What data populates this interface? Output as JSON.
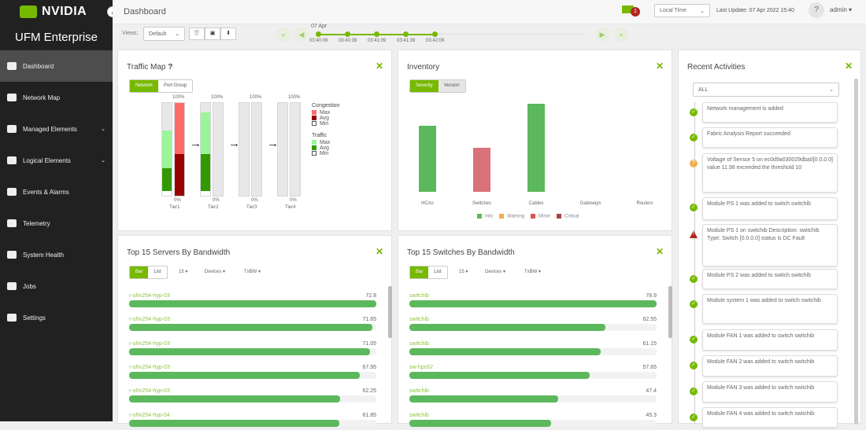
{
  "brand": {
    "logo": "NVIDIA",
    "product": "UFM Enterprise"
  },
  "sidebar": {
    "items": [
      {
        "label": "Dashboard",
        "icon": "dashboard-icon",
        "active": true
      },
      {
        "label": "Network Map",
        "icon": "sitemap-icon"
      },
      {
        "label": "Managed Elements",
        "icon": "list-icon",
        "expandable": true
      },
      {
        "label": "Logical Elements",
        "icon": "server-icon",
        "expandable": true
      },
      {
        "label": "Events & Alarms",
        "icon": "bell-icon"
      },
      {
        "label": "Telemetry",
        "icon": "chart-icon"
      },
      {
        "label": "System Health",
        "icon": "medkit-icon"
      },
      {
        "label": "Jobs",
        "icon": "cube-icon"
      },
      {
        "label": "Settings",
        "icon": "gear-icon"
      }
    ]
  },
  "header": {
    "title": "Dashboard",
    "notifications": "1",
    "time_mode": "Local Time",
    "last_update": "Last Update: 07 Apr 2022 15:40",
    "help": "?",
    "user": "admin"
  },
  "toolbar": {
    "views_label": "Views:",
    "view": "Default"
  },
  "timeline": {
    "date": "07 Apr",
    "times": [
      "03:40:09",
      "03:40:39",
      "03:41:09",
      "03:41:39",
      "03:42:09"
    ]
  },
  "traffic_map": {
    "title": "Traffic Map",
    "tabs": [
      "Network",
      "Port Group"
    ],
    "top": "100%",
    "bottom": "0%",
    "tiers": [
      {
        "name": "Tier1",
        "traffic_max": 0.7,
        "traffic_avg": 0.25,
        "cong_max": 1.0,
        "cong_avg": 0.45
      },
      {
        "name": "Tier2",
        "traffic_max": 0.9,
        "traffic_avg": 0.4,
        "cong_max": 0,
        "cong_avg": 0
      },
      {
        "name": "Tier3",
        "traffic_max": 0,
        "traffic_avg": 0,
        "cong_max": 0,
        "cong_avg": 0
      },
      {
        "name": "Tier4",
        "traffic_max": 0,
        "traffic_avg": 0,
        "cong_max": 0,
        "cong_avg": 0
      }
    ],
    "legend": {
      "congestion": "Congestion",
      "traffic": "Traffic",
      "max": "Max",
      "avg": "Avg",
      "min": "Min"
    },
    "colors": {
      "cong_max": "#ff6b6b",
      "cong_avg": "#990000",
      "traffic_max": "#9af59a",
      "traffic_avg": "#339900"
    }
  },
  "chart_data": {
    "type": "bar",
    "categories": [
      "HCAs",
      "Switches",
      "Cables",
      "Gateways",
      "Routers"
    ],
    "values": [
      3,
      2,
      4,
      0,
      0
    ],
    "severity": [
      "Info",
      "Minor",
      "Info",
      null,
      null
    ],
    "legend": [
      {
        "name": "Info",
        "color": "#5cb85c"
      },
      {
        "name": "Warning",
        "color": "#f0ad4e"
      },
      {
        "name": "Minor",
        "color": "#d9534f"
      },
      {
        "name": "Critical",
        "color": "#a94442"
      }
    ]
  },
  "inventory": {
    "title": "Inventory",
    "tabs": [
      "Severity",
      "Version"
    ]
  },
  "servers": {
    "title": "Top 15 Servers By Bandwidth",
    "tabs": [
      "Bar",
      "List"
    ],
    "filters": [
      "15",
      "Devices",
      "TxBW"
    ],
    "max": 72.8,
    "rows": [
      {
        "name": "r-ufm254-hyp-03",
        "value": 72.8
      },
      {
        "name": "r-ufm254-hyp-03",
        "value": 71.65
      },
      {
        "name": "r-ufm254-hyp-03",
        "value": 71.05
      },
      {
        "name": "r-ufm254-hyp-03",
        "value": 67.95
      },
      {
        "name": "r-ufm254-hyp-03",
        "value": 62.25
      },
      {
        "name": "r-ufm254-hyp-04",
        "value": 61.85
      }
    ]
  },
  "switches": {
    "title": "Top 15 Switches By Bandwidth",
    "tabs": [
      "Bar",
      "List"
    ],
    "filters": [
      "15",
      "Devices",
      "TxBW"
    ],
    "max": 78.9,
    "rows": [
      {
        "name": "switchib",
        "value": 78.9
      },
      {
        "name": "switchib",
        "value": 62.55
      },
      {
        "name": "switchib",
        "value": 61.15
      },
      {
        "name": "sw-hpc62",
        "value": 57.65
      },
      {
        "name": "switchib",
        "value": 47.4
      },
      {
        "name": "switchib",
        "value": 45.3
      }
    ]
  },
  "activities": {
    "title": "Recent Activities",
    "filter": "ALL",
    "items": [
      {
        "text": "Network management is added",
        "status": "ok"
      },
      {
        "text": "Fabric Analysis Report succeeded",
        "status": "ok"
      },
      {
        "text": "Voltage of Sensor 5 on ec0d9a030029dba0[0.0.0.0] value 11.98 exceeded the threshold 10",
        "status": "warning"
      },
      {
        "text": "Module PS 1 was added to switch switchib",
        "status": "ok"
      },
      {
        "text": "Module PS 1 on switchib Description: switchib Type: Switch [0.0.0.0] status is DC Fault",
        "status": "critical"
      },
      {
        "text": "Module PS 2 was added to switch switchib",
        "status": "ok"
      },
      {
        "text": "Module system 1 was added to switch switchib",
        "status": "ok"
      },
      {
        "text": "Module FAN 1 was added to switch switchib",
        "status": "ok"
      },
      {
        "text": "Module FAN 2 was added to switch switchib",
        "status": "ok"
      },
      {
        "text": "Module FAN 3 was added to switch switchib",
        "status": "ok"
      },
      {
        "text": "Module FAN 4 was added to switch switchib",
        "status": "ok"
      }
    ]
  }
}
